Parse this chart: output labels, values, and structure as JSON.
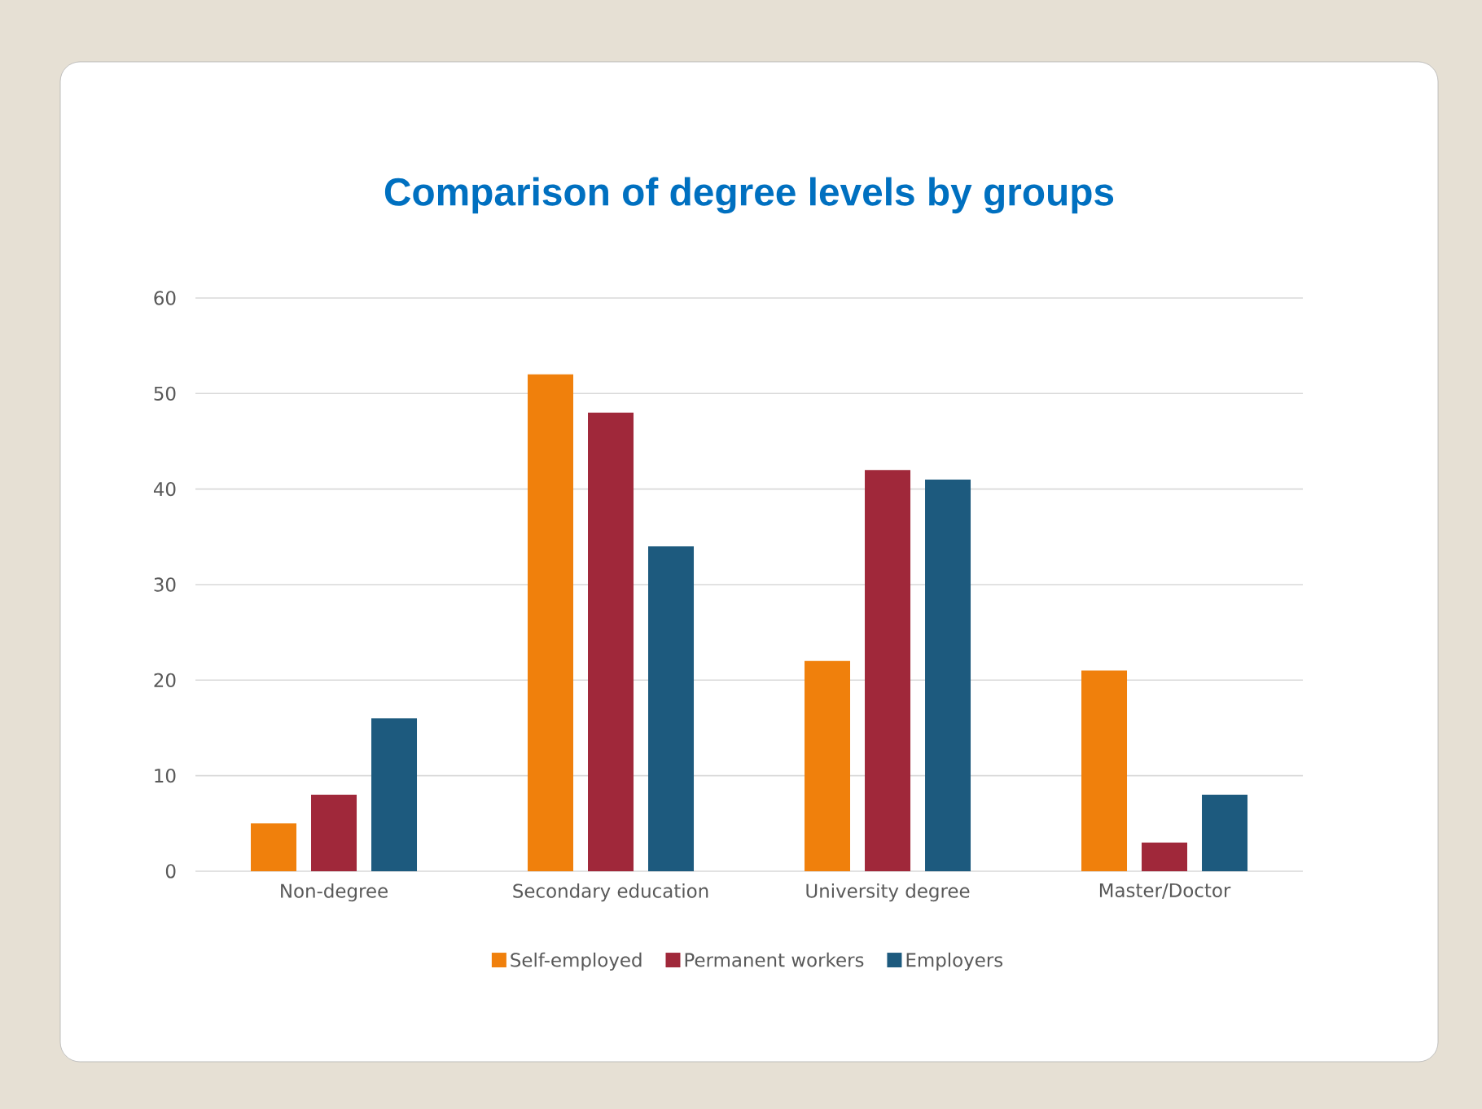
{
  "chart_data": {
    "type": "bar",
    "title": "Comparison of degree levels by groups",
    "categories": [
      "Non-degree",
      "Secondary education",
      "University degree",
      "Master/Doctor"
    ],
    "series": [
      {
        "name": "Self-employed",
        "color": "#f0800c",
        "values": [
          5,
          52,
          22,
          21
        ]
      },
      {
        "name": "Permanent workers",
        "color": "#a0283a",
        "values": [
          8,
          48,
          42,
          3
        ]
      },
      {
        "name": "Employers",
        "color": "#1d5a7e",
        "values": [
          16,
          34,
          41,
          8
        ]
      }
    ],
    "ylim": [
      0,
      60
    ],
    "yticks": [
      0,
      10,
      20,
      30,
      40,
      50,
      60
    ],
    "grid": "y",
    "legend": "bottom"
  }
}
